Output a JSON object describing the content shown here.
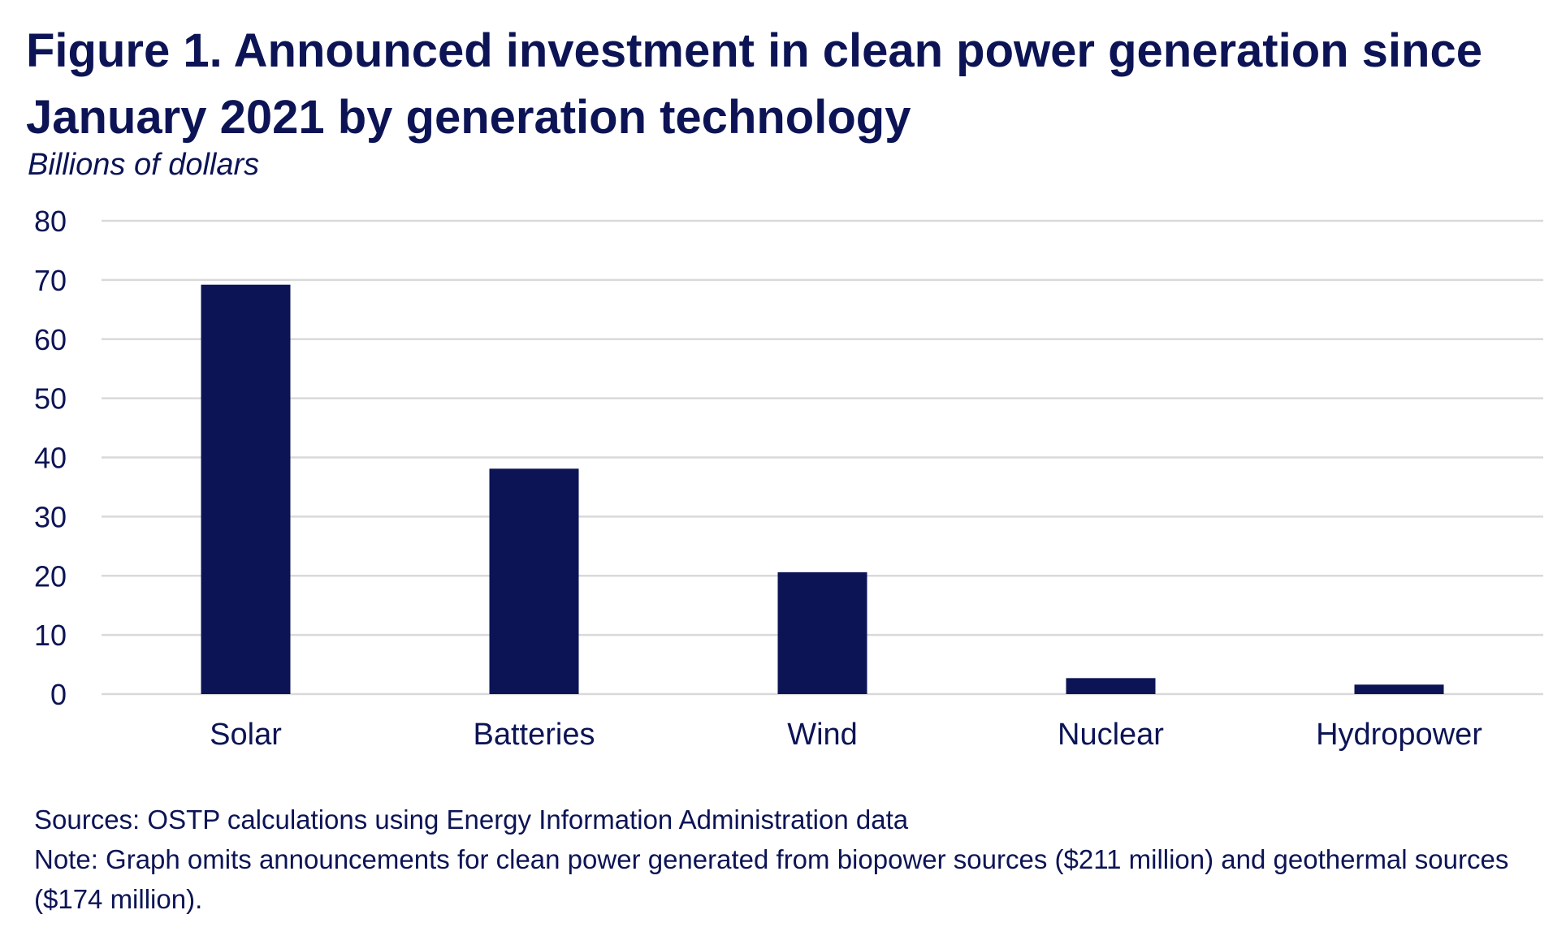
{
  "title": "Figure 1. Announced investment in clean power generation since January 2021 by generation technology",
  "subtitle": "Billions of dollars",
  "footer": {
    "sources": "Sources: OSTP calculations using Energy Information Administration data",
    "note": "Note: Graph omits announcements for clean power generated from biopower sources ($211 million) and geothermal sources ($174 million)."
  },
  "colors": {
    "bar": "#0c1455",
    "grid": "#d9d9d9",
    "text": "#0c1455"
  },
  "chart_data": {
    "type": "bar",
    "title": "Figure 1. Announced investment in clean power generation since January 2021 by generation technology",
    "xlabel": "",
    "ylabel": "Billions of dollars",
    "categories": [
      "Solar",
      "Batteries",
      "Wind",
      "Nuclear",
      "Hydropower"
    ],
    "values": [
      69.2,
      38.1,
      20.6,
      2.7,
      1.6
    ],
    "ylim": [
      0,
      80
    ],
    "yticks": [
      0,
      10,
      20,
      30,
      40,
      50,
      60,
      70,
      80
    ],
    "grid": true,
    "legend": "none"
  }
}
